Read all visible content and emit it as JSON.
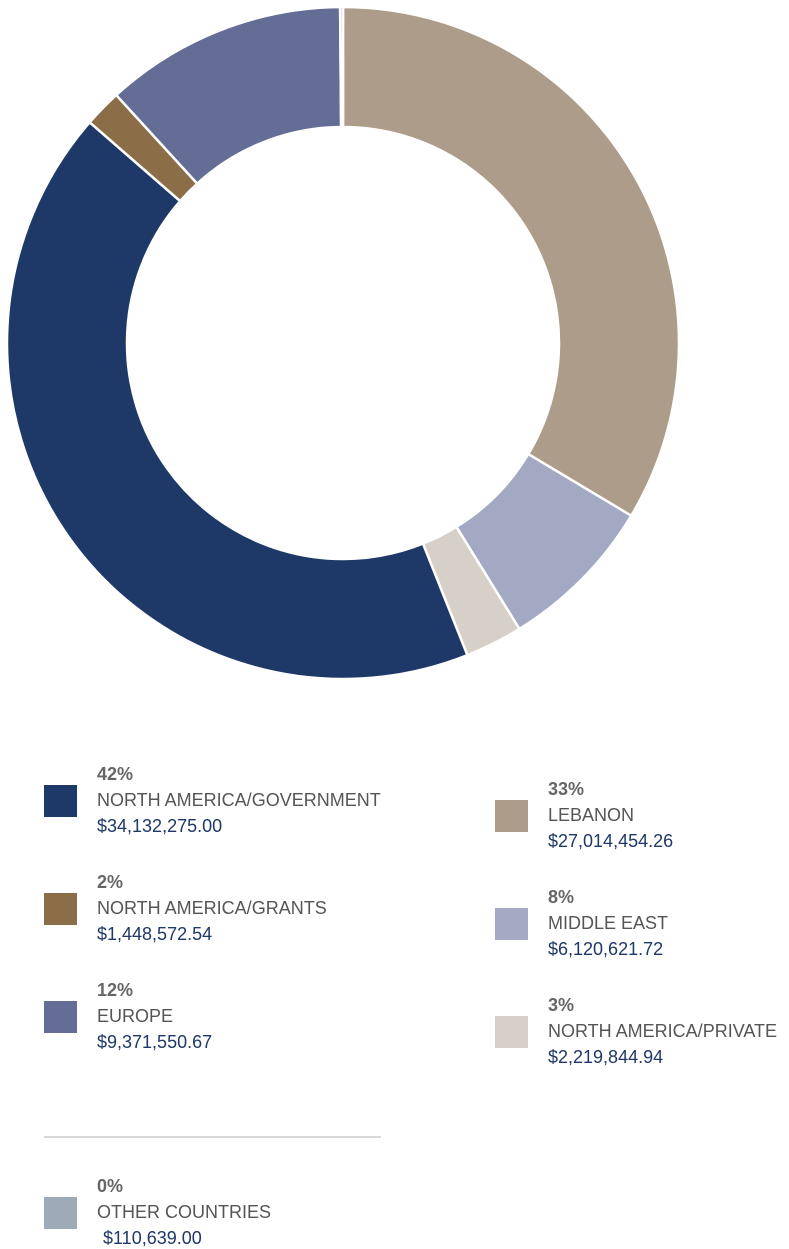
{
  "chart_data": {
    "type": "donut",
    "categories": [
      "LEBANON",
      "MIDDLE EAST",
      "NORTH AMERICA/PRIVATE",
      "NORTH AMERICA/GOVERNMENT",
      "NORTH AMERICA/GRANTS",
      "EUROPE",
      "OTHER COUNTRIES"
    ],
    "values": [
      27014454.26,
      6120621.72,
      2219844.94,
      34132275.0,
      1448572.54,
      9371550.67,
      110639.0
    ],
    "value_labels": [
      "$27,014,454.26",
      "$6,120,621.72",
      "$2,219,844.94",
      "$34,132,275.00",
      "$1,448,572.54",
      "$9,371,550.67",
      "$110,639.00"
    ],
    "percent_labels": [
      "33%",
      "8%",
      "3%",
      "42%",
      "2%",
      "12%",
      "0%"
    ],
    "colors": [
      "#ad9c89",
      "#a3a8c3",
      "#d6d0c8",
      "#1e3867",
      "#8b6d47",
      "#636d96",
      "#9eaab8"
    ]
  }
}
